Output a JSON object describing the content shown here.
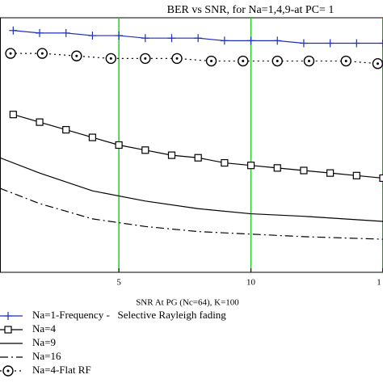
{
  "chart_data": {
    "type": "line",
    "title": "BER vs SNR, for Na=1,4,9-at PC= 1",
    "x_label": "SNR At PG (Nc=64), K=100",
    "xlim": [
      0.5,
      15
    ],
    "xticks": [
      5,
      10,
      {
        "value": 15,
        "label": "1"
      }
    ],
    "ylim": [
      0,
      1
    ],
    "grid_color": "#22cc22",
    "series": [
      {
        "name": "Na=1-Frequency -   Selective Rayleigh fading",
        "color": "#1f2fbf",
        "marker": "plus",
        "linestyle": "solid",
        "x": [
          1,
          2,
          3,
          4,
          5,
          6,
          7,
          8,
          9,
          10,
          11,
          12,
          13,
          14,
          15
        ],
        "values": [
          0.95,
          0.94,
          0.94,
          0.93,
          0.93,
          0.92,
          0.92,
          0.92,
          0.91,
          0.91,
          0.91,
          0.9,
          0.9,
          0.9,
          0.9
        ]
      },
      {
        "name": "Na=4",
        "color": "#000000",
        "marker": "square",
        "linestyle": "solid",
        "x": [
          1,
          2,
          3,
          4,
          5,
          6,
          7,
          8,
          9,
          10,
          11,
          12,
          13,
          14,
          15
        ],
        "values": [
          0.62,
          0.59,
          0.56,
          0.53,
          0.5,
          0.48,
          0.46,
          0.45,
          0.43,
          0.42,
          0.41,
          0.4,
          0.39,
          0.38,
          0.37
        ]
      },
      {
        "name": "Na=9",
        "color": "#000000",
        "marker": "none",
        "linestyle": "solid",
        "x": [
          0.5,
          2,
          4,
          6,
          8,
          10,
          12,
          15
        ],
        "values": [
          0.45,
          0.39,
          0.32,
          0.28,
          0.25,
          0.23,
          0.22,
          0.2
        ]
      },
      {
        "name": "Na=16",
        "color": "#000000",
        "marker": "none",
        "linestyle": "dashdot",
        "x": [
          0.5,
          2,
          4,
          6,
          8,
          10,
          12,
          15
        ],
        "values": [
          0.33,
          0.27,
          0.21,
          0.18,
          0.16,
          0.15,
          0.14,
          0.13
        ]
      },
      {
        "name": "Na=4-Flat RF",
        "color": "#000000",
        "marker": "circledot",
        "linestyle": "dotted",
        "x": [
          0.9,
          2.1,
          3.4,
          4.7,
          6.0,
          7.2,
          8.5,
          9.7,
          11.0,
          12.2,
          13.6,
          14.8
        ],
        "values": [
          0.86,
          0.86,
          0.85,
          0.84,
          0.84,
          0.84,
          0.83,
          0.83,
          0.83,
          0.83,
          0.83,
          0.82
        ]
      }
    ]
  }
}
